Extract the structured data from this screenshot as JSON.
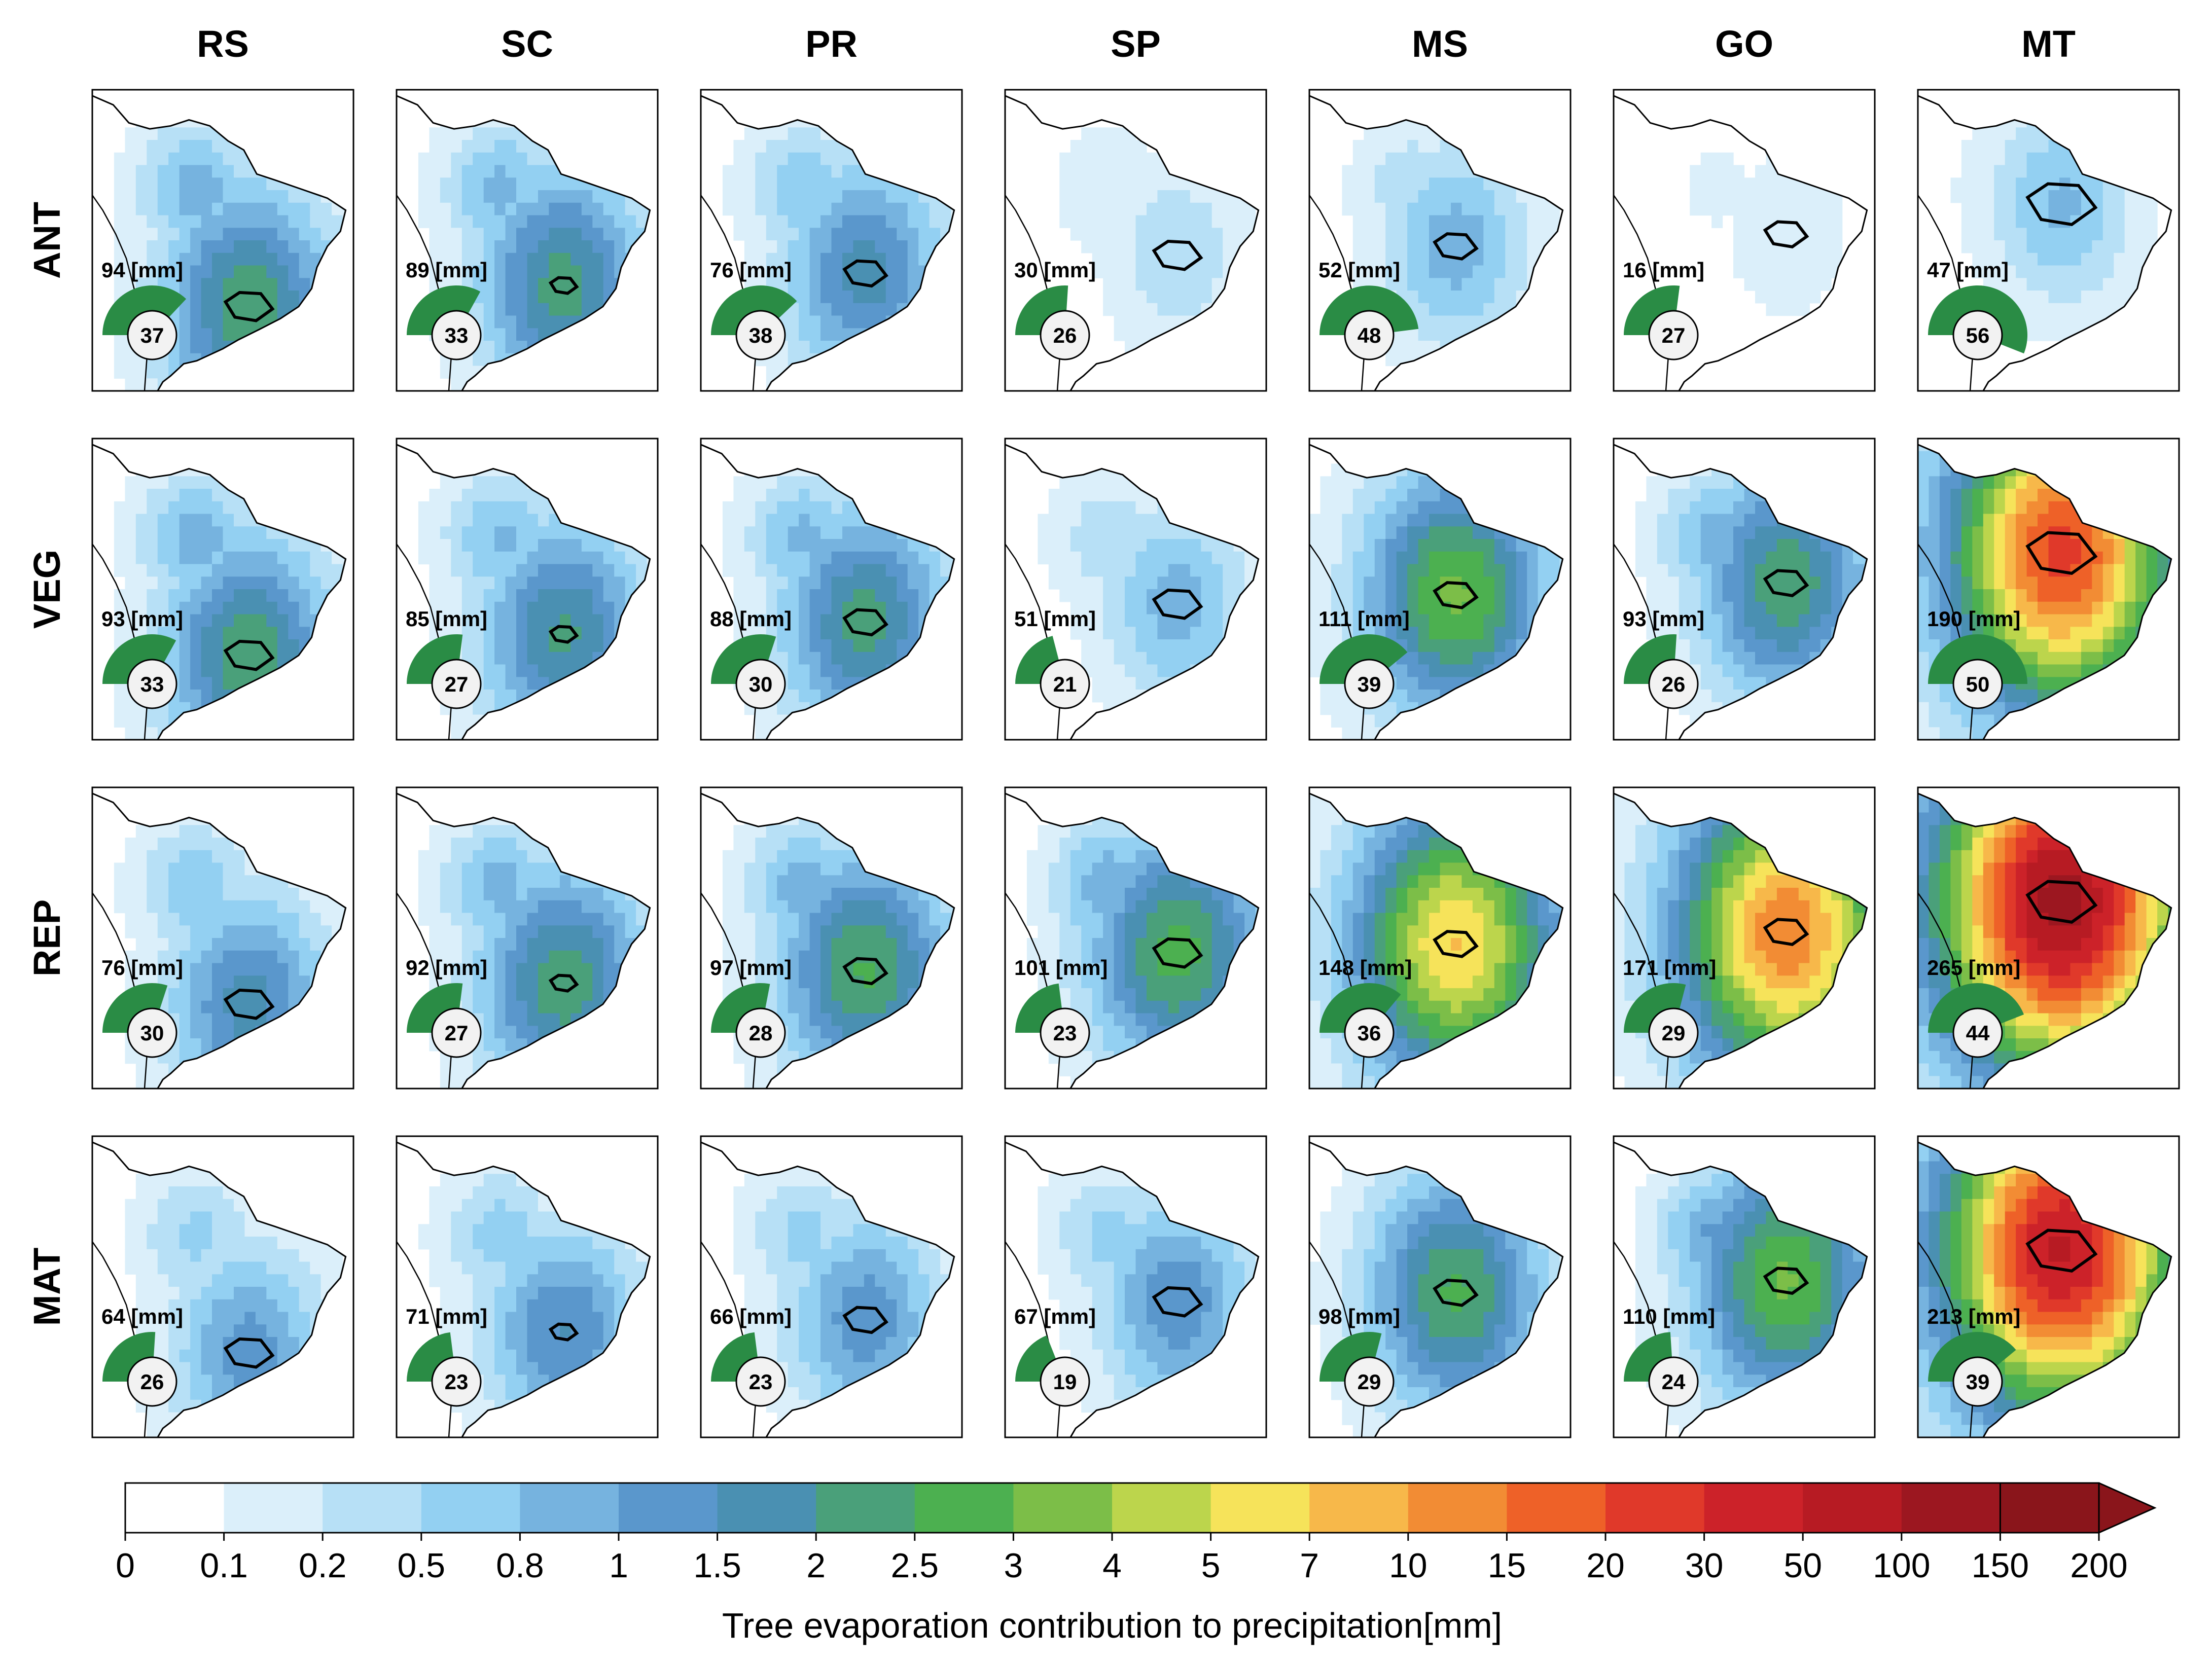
{
  "chart_data": {
    "type": "heatmap",
    "columns": [
      "RS",
      "SC",
      "PR",
      "SP",
      "MS",
      "GO",
      "MT"
    ],
    "rows": [
      "ANT",
      "VEG",
      "REP",
      "MAT"
    ],
    "panels": [
      [
        {
          "total": "94 [mm]",
          "pct": "37"
        },
        {
          "total": "89 [mm]",
          "pct": "33"
        },
        {
          "total": "76 [mm]",
          "pct": "38"
        },
        {
          "total": "30 [mm]",
          "pct": "26"
        },
        {
          "total": "52 [mm]",
          "pct": "48"
        },
        {
          "total": "16 [mm]",
          "pct": "27"
        },
        {
          "total": "47 [mm]",
          "pct": "56"
        }
      ],
      [
        {
          "total": "93 [mm]",
          "pct": "33"
        },
        {
          "total": "85 [mm]",
          "pct": "27"
        },
        {
          "total": "88 [mm]",
          "pct": "30"
        },
        {
          "total": "51 [mm]",
          "pct": "21"
        },
        {
          "total": "111 [mm]",
          "pct": "39"
        },
        {
          "total": "93 [mm]",
          "pct": "26"
        },
        {
          "total": "190 [mm]",
          "pct": "50"
        }
      ],
      [
        {
          "total": "76 [mm]",
          "pct": "30"
        },
        {
          "total": "92 [mm]",
          "pct": "27"
        },
        {
          "total": "97 [mm]",
          "pct": "28"
        },
        {
          "total": "101 [mm]",
          "pct": "23"
        },
        {
          "total": "148 [mm]",
          "pct": "36"
        },
        {
          "total": "171 [mm]",
          "pct": "29"
        },
        {
          "total": "265 [mm]",
          "pct": "44"
        }
      ],
      [
        {
          "total": "64 [mm]",
          "pct": "26"
        },
        {
          "total": "71 [mm]",
          "pct": "23"
        },
        {
          "total": "66 [mm]",
          "pct": "23"
        },
        {
          "total": "67 [mm]",
          "pct": "19"
        },
        {
          "total": "98 [mm]",
          "pct": "29"
        },
        {
          "total": "110 [mm]",
          "pct": "24"
        },
        {
          "total": "213 [mm]",
          "pct": "39"
        }
      ]
    ],
    "colorbar": {
      "label": "Tree evaporation contribution to precipitation[mm]",
      "ticks": [
        "0",
        "0.1",
        "0.2",
        "0.5",
        "0.8",
        "1",
        "1.5",
        "2",
        "2.5",
        "3",
        "4",
        "5",
        "7",
        "10",
        "15",
        "20",
        "30",
        "50",
        "100",
        "150",
        "200"
      ],
      "colors": [
        "#ffffff",
        "#dbeffa",
        "#b7e0f6",
        "#93d0f2",
        "#76b3df",
        "#5a97cc",
        "#4a90b2",
        "#4aa07a",
        "#4cb050",
        "#7cbe48",
        "#bcd54c",
        "#f6e35a",
        "#f7b84a",
        "#f28c34",
        "#ee6128",
        "#e0392a",
        "#cc2229",
        "#b71b23",
        "#9c1720",
        "#8a151b"
      ],
      "extend": "max"
    }
  }
}
